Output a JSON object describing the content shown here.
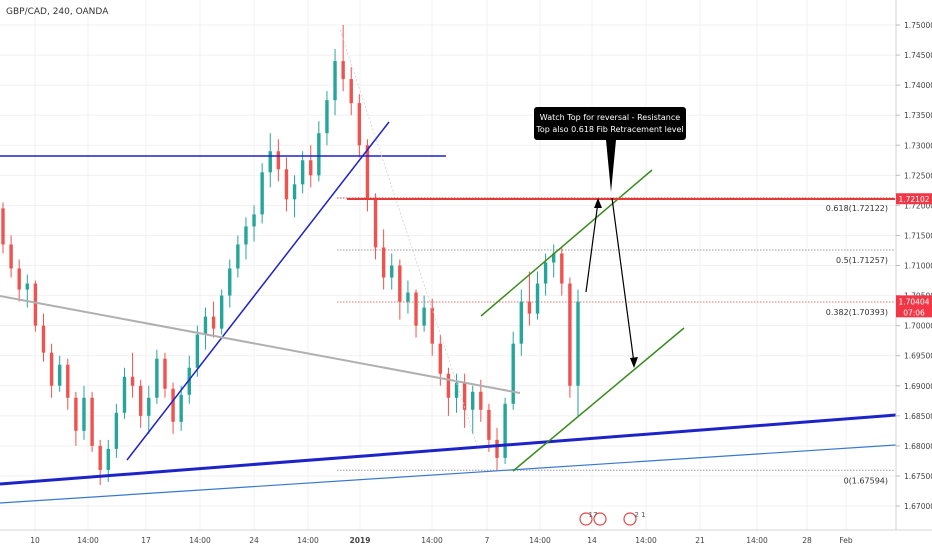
{
  "header": {
    "symbol_label": "GBP/CAD, 240, OANDA"
  },
  "chart_data": {
    "type": "candlestick",
    "symbol": "GBP/CAD",
    "interval": "240",
    "source": "OANDA",
    "y_axis": {
      "ticks": [
        "1.75000",
        "1.74500",
        "1.74000",
        "1.73500",
        "1.73000",
        "1.72500",
        "1.72000",
        "1.71500",
        "1.71000",
        "1.70500",
        "1.70000",
        "1.69500",
        "1.69000",
        "1.68500",
        "1.68000",
        "1.67500",
        "1.67000"
      ],
      "range": [
        1.6675,
        1.7515
      ]
    },
    "x_axis": {
      "ticks": [
        "10",
        "14:00",
        "17",
        "14:00",
        "24",
        "14:00",
        "2019",
        "14:00",
        "7",
        "14:00",
        "14",
        "14:00",
        "21",
        "14:00",
        "28",
        "Feb"
      ]
    },
    "price_tags": [
      {
        "value": "1.72102",
        "color": "#f23645"
      },
      {
        "value": "1.70404",
        "color": "#f23645",
        "sub": "07:06"
      }
    ],
    "fibonacci": [
      {
        "label": "0.618(1.72122)",
        "price": 1.72122,
        "color": "#e53935"
      },
      {
        "label": "0.5(1.71257)",
        "price": 1.71257,
        "color": "#999999"
      },
      {
        "label": "0.382(1.70393)",
        "price": 1.70393,
        "color": "#e57373"
      },
      {
        "label": "0(1.67594)",
        "price": 1.67594,
        "color": "#999999"
      }
    ],
    "callout": {
      "lines": [
        "Watch Top for reversal - Resistance",
        "Top also 0.618 Fib Retracement level"
      ]
    },
    "event_badges": [
      "17",
      "2 1"
    ],
    "colors": {
      "up": "#26a69a",
      "down": "#ef5350",
      "trendline_blue": "#1e22c9",
      "channel_green": "#3a8c1f"
    },
    "ohlc": [
      [
        1.7195,
        1.7205,
        1.712,
        1.7135
      ],
      [
        1.7135,
        1.715,
        1.708,
        1.7095
      ],
      [
        1.7095,
        1.711,
        1.704,
        1.706
      ],
      [
        1.706,
        1.7085,
        1.703,
        1.707
      ],
      [
        1.707,
        1.7075,
        1.699,
        1.7
      ],
      [
        1.7,
        1.702,
        1.694,
        1.6955
      ],
      [
        1.6955,
        1.697,
        1.688,
        1.69
      ],
      [
        1.69,
        1.695,
        1.689,
        1.6935
      ],
      [
        1.6935,
        1.6945,
        1.686,
        1.688
      ],
      [
        1.688,
        1.689,
        1.68,
        1.6825
      ],
      [
        1.6825,
        1.69,
        1.681,
        1.688
      ],
      [
        1.688,
        1.689,
        1.679,
        1.68
      ],
      [
        1.68,
        1.681,
        1.6735,
        1.676
      ],
      [
        1.676,
        1.681,
        1.674,
        1.6795
      ],
      [
        1.6795,
        1.687,
        1.678,
        1.6855
      ],
      [
        1.6855,
        1.693,
        1.6845,
        1.6915
      ],
      [
        1.6915,
        1.6955,
        1.688,
        1.69
      ],
      [
        1.69,
        1.691,
        1.683,
        1.685
      ],
      [
        1.685,
        1.69,
        1.682,
        1.688
      ],
      [
        1.688,
        1.696,
        1.687,
        1.6945
      ],
      [
        1.6945,
        1.6955,
        1.688,
        1.6895
      ],
      [
        1.6895,
        1.6905,
        1.682,
        1.684
      ],
      [
        1.684,
        1.69,
        1.6825,
        1.6885
      ],
      [
        1.6885,
        1.695,
        1.687,
        1.693
      ],
      [
        1.693,
        1.7,
        1.6915,
        1.6985
      ],
      [
        1.6985,
        1.703,
        1.696,
        1.7015
      ],
      [
        1.7015,
        1.704,
        1.698,
        1.6995
      ],
      [
        1.6995,
        1.706,
        1.6985,
        1.705
      ],
      [
        1.705,
        1.711,
        1.703,
        1.7095
      ],
      [
        1.7095,
        1.715,
        1.708,
        1.7135
      ],
      [
        1.7135,
        1.718,
        1.711,
        1.7165
      ],
      [
        1.7165,
        1.72,
        1.714,
        1.7185
      ],
      [
        1.7185,
        1.727,
        1.717,
        1.7255
      ],
      [
        1.7255,
        1.732,
        1.723,
        1.729
      ],
      [
        1.729,
        1.731,
        1.724,
        1.726
      ],
      [
        1.726,
        1.728,
        1.719,
        1.721
      ],
      [
        1.721,
        1.725,
        1.718,
        1.7235
      ],
      [
        1.7235,
        1.729,
        1.722,
        1.7275
      ],
      [
        1.7275,
        1.73,
        1.723,
        1.725
      ],
      [
        1.725,
        1.734,
        1.724,
        1.732
      ],
      [
        1.732,
        1.739,
        1.73,
        1.7375
      ],
      [
        1.7375,
        1.746,
        1.735,
        1.744
      ],
      [
        1.744,
        1.75,
        1.739,
        1.741
      ],
      [
        1.741,
        1.743,
        1.735,
        1.737
      ],
      [
        1.737,
        1.7385,
        1.728,
        1.73
      ],
      [
        1.73,
        1.731,
        1.719,
        1.721
      ],
      [
        1.721,
        1.722,
        1.711,
        1.713
      ],
      [
        1.713,
        1.716,
        1.706,
        1.708
      ],
      [
        1.708,
        1.712,
        1.706,
        1.71
      ],
      [
        1.71,
        1.711,
        1.701,
        1.704
      ],
      [
        1.704,
        1.7075,
        1.702,
        1.7055
      ],
      [
        1.7055,
        1.706,
        1.698,
        1.7
      ],
      [
        1.7,
        1.705,
        1.699,
        1.703
      ],
      [
        1.703,
        1.7045,
        1.695,
        1.697
      ],
      [
        1.697,
        1.6985,
        1.69,
        1.692
      ],
      [
        1.692,
        1.693,
        1.685,
        1.688
      ],
      [
        1.688,
        1.692,
        1.6855,
        1.6905
      ],
      [
        1.6905,
        1.692,
        1.683,
        1.686
      ],
      [
        1.686,
        1.69,
        1.682,
        1.689
      ],
      [
        1.689,
        1.691,
        1.684,
        1.686
      ],
      [
        1.686,
        1.687,
        1.679,
        1.681
      ],
      [
        1.681,
        1.683,
        1.676,
        1.678
      ],
      [
        1.678,
        1.688,
        1.677,
        1.687
      ],
      [
        1.687,
        1.699,
        1.686,
        1.697
      ],
      [
        1.697,
        1.706,
        1.695,
        1.704
      ],
      [
        1.704,
        1.709,
        1.7,
        1.702
      ],
      [
        1.702,
        1.709,
        1.701,
        1.707
      ],
      [
        1.707,
        1.712,
        1.705,
        1.7105
      ],
      [
        1.7105,
        1.7135,
        1.708,
        1.712
      ],
      [
        1.712,
        1.713,
        1.705,
        1.707
      ],
      [
        1.707,
        1.708,
        1.688,
        1.69
      ],
      [
        1.69,
        1.706,
        1.685,
        1.704
      ]
    ]
  }
}
